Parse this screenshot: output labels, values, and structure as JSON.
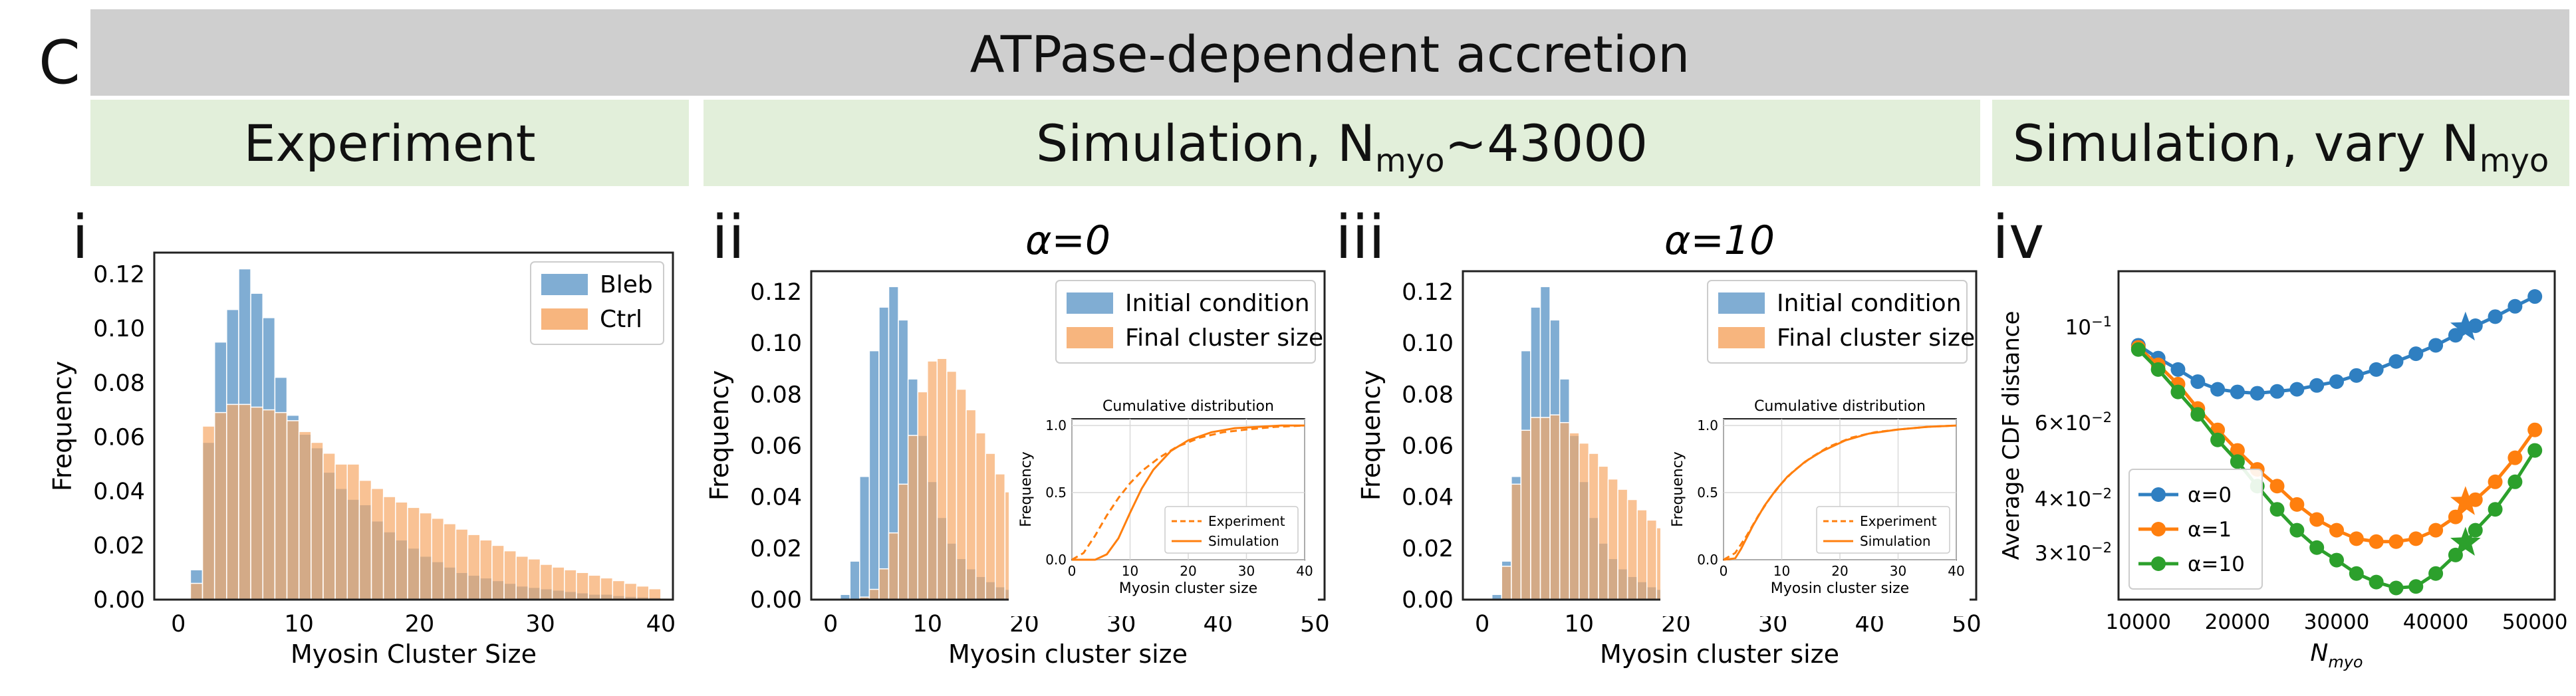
{
  "figure": {
    "panel_letter": "C",
    "banner_title": "ATPase-dependent accretion",
    "header_experiment": "Experiment",
    "header_sim_base": "Simulation, N",
    "header_sim_sub": "myo",
    "header_sim_tail": "~43000",
    "header_vary_base": "Simulation, vary N",
    "header_vary_sub": "myo"
  },
  "colors": {
    "blue": "#6a9fcb",
    "orange": "#f6a867",
    "overlap": "#b48a68",
    "line_blue": "#2f7fc1",
    "line_orange": "#ff7f0e",
    "line_green": "#2ca02c"
  },
  "chart_data": [
    {
      "id": "i",
      "panel_label": "i",
      "type": "bar",
      "title": "",
      "xlabel": "Myosin Cluster Size",
      "ylabel": "Frequency",
      "xlim": [
        -2,
        41
      ],
      "ylim": [
        0,
        0.128
      ],
      "xticks": [
        0,
        10,
        20,
        30,
        40
      ],
      "yticks": [
        0.0,
        0.02,
        0.04,
        0.06,
        0.08,
        0.1,
        0.12
      ],
      "ytick_labels": [
        "0.00",
        "0.02",
        "0.04",
        "0.06",
        "0.08",
        "0.10",
        "0.12"
      ],
      "legend_position": "upper right",
      "series": [
        {
          "name": "Bleb",
          "color": "blue",
          "bin_start": 1,
          "values": [
            0.011,
            0.058,
            0.095,
            0.107,
            0.122,
            0.113,
            0.104,
            0.082,
            0.068,
            0.061,
            0.056,
            0.047,
            0.041,
            0.037,
            0.035,
            0.029,
            0.025,
            0.022,
            0.019,
            0.016,
            0.014,
            0.012,
            0.01,
            0.009,
            0.008,
            0.007,
            0.006,
            0.005,
            0.0045,
            0.004,
            0.0035,
            0.003,
            0.0025,
            0.002,
            0.002,
            0.0015,
            0.0012,
            0.001,
            0.0008
          ]
        },
        {
          "name": "Ctrl",
          "color": "orange",
          "bin_start": 1,
          "values": [
            0.006,
            0.064,
            0.069,
            0.072,
            0.072,
            0.071,
            0.07,
            0.069,
            0.066,
            0.062,
            0.058,
            0.054,
            0.05,
            0.05,
            0.044,
            0.041,
            0.038,
            0.036,
            0.034,
            0.032,
            0.03,
            0.028,
            0.026,
            0.024,
            0.022,
            0.02,
            0.018,
            0.016,
            0.015,
            0.013,
            0.012,
            0.011,
            0.01,
            0.009,
            0.008,
            0.007,
            0.006,
            0.005,
            0.004
          ]
        }
      ]
    },
    {
      "id": "ii",
      "panel_label": "ii",
      "type": "bar",
      "title": "α=0",
      "xlabel": "Myosin cluster size",
      "ylabel": "Frequency",
      "xlim": [
        -2,
        51
      ],
      "ylim": [
        0,
        0.128
      ],
      "xticks": [
        0,
        10,
        20,
        30,
        40,
        50
      ],
      "yticks": [
        0.0,
        0.02,
        0.04,
        0.06,
        0.08,
        0.1,
        0.12
      ],
      "ytick_labels": [
        "0.00",
        "0.02",
        "0.04",
        "0.06",
        "0.08",
        "0.10",
        "0.12"
      ],
      "legend_position": "upper right",
      "series": [
        {
          "name": "Initial condition",
          "color": "blue",
          "bin_start": 1,
          "values": [
            0.002,
            0.015,
            0.048,
            0.097,
            0.114,
            0.122,
            0.109,
            0.086,
            0.064,
            0.046,
            0.032,
            0.022,
            0.016,
            0.012,
            0.009,
            0.007,
            0.005,
            0.004,
            0.003,
            0.0025,
            0.002,
            0.0015,
            0.001,
            0.0008,
            0.0006,
            0.0005,
            0.0004
          ]
        },
        {
          "name": "Final cluster size",
          "color": "orange",
          "bin_start": 1,
          "values": [
            0.0,
            0.0,
            0.001,
            0.004,
            0.012,
            0.026,
            0.045,
            0.064,
            0.081,
            0.093,
            0.094,
            0.089,
            0.082,
            0.074,
            0.065,
            0.057,
            0.049,
            0.042,
            0.035,
            0.029,
            0.024,
            0.019,
            0.016,
            0.013,
            0.01,
            0.008,
            0.006,
            0.005,
            0.004,
            0.003,
            0.0025,
            0.002,
            0.0015,
            0.001,
            0.0008
          ]
        }
      ],
      "inset": {
        "title": "Cumulative distribution",
        "xlabel": "Myosin cluster size",
        "ylabel": "Frequency",
        "xlim": [
          0,
          40
        ],
        "ylim": [
          0,
          1.05
        ],
        "xticks": [
          0,
          10,
          20,
          30,
          40
        ],
        "yticks": [
          0.0,
          0.5,
          1.0
        ],
        "ytick_labels": [
          "0.0",
          "0.5",
          "1.0"
        ],
        "legend": [
          "Experiment",
          "Simulation"
        ],
        "series": [
          {
            "name": "Experiment",
            "style": "dashed",
            "x": [
              0,
              2,
              4,
              6,
              8,
              10,
              12,
              15,
              18,
              22,
              26,
              30,
              35,
              40
            ],
            "y": [
              0.0,
              0.05,
              0.18,
              0.33,
              0.46,
              0.57,
              0.66,
              0.76,
              0.84,
              0.91,
              0.95,
              0.97,
              0.99,
              1.0
            ]
          },
          {
            "name": "Simulation",
            "style": "solid",
            "x": [
              0,
              4,
              6,
              8,
              10,
              12,
              14,
              17,
              20,
              24,
              28,
              32,
              36,
              40
            ],
            "y": [
              0.0,
              0.0,
              0.04,
              0.16,
              0.35,
              0.53,
              0.67,
              0.81,
              0.89,
              0.95,
              0.98,
              0.99,
              1.0,
              1.0
            ]
          }
        ]
      }
    },
    {
      "id": "iii",
      "panel_label": "iii",
      "type": "bar",
      "title": "α=10",
      "xlabel": "Myosin cluster size",
      "ylabel": "Frequency",
      "xlim": [
        -2,
        51
      ],
      "ylim": [
        0,
        0.128
      ],
      "xticks": [
        0,
        10,
        20,
        30,
        40,
        50
      ],
      "yticks": [
        0.0,
        0.02,
        0.04,
        0.06,
        0.08,
        0.1,
        0.12
      ],
      "ytick_labels": [
        "0.00",
        "0.02",
        "0.04",
        "0.06",
        "0.08",
        "0.10",
        "0.12"
      ],
      "legend_position": "upper right",
      "series": [
        {
          "name": "Initial condition",
          "color": "blue",
          "bin_start": 1,
          "values": [
            0.002,
            0.015,
            0.048,
            0.097,
            0.114,
            0.122,
            0.109,
            0.086,
            0.064,
            0.046,
            0.032,
            0.022,
            0.016,
            0.012,
            0.009,
            0.007,
            0.005,
            0.004,
            0.003,
            0.0025,
            0.002,
            0.0015,
            0.001,
            0.0008,
            0.0006,
            0.0005,
            0.0004
          ]
        },
        {
          "name": "Final cluster size",
          "color": "orange",
          "bin_start": 1,
          "values": [
            0.0,
            0.013,
            0.045,
            0.066,
            0.071,
            0.071,
            0.072,
            0.069,
            0.065,
            0.061,
            0.057,
            0.052,
            0.047,
            0.043,
            0.039,
            0.035,
            0.031,
            0.028,
            0.025,
            0.022,
            0.019,
            0.017,
            0.015,
            0.013,
            0.011,
            0.01,
            0.009,
            0.008,
            0.007,
            0.006,
            0.005,
            0.0045,
            0.004,
            0.0035,
            0.003,
            0.0025,
            0.002,
            0.0018,
            0.0015,
            0.0012,
            0.001
          ]
        }
      ],
      "inset": {
        "title": "Cumulative distribution",
        "xlabel": "Myosin cluster size",
        "ylabel": "Frequency",
        "xlim": [
          0,
          40
        ],
        "ylim": [
          0,
          1.05
        ],
        "xticks": [
          0,
          10,
          20,
          30,
          40
        ],
        "yticks": [
          0.0,
          0.5,
          1.0
        ],
        "ytick_labels": [
          "0.0",
          "0.5",
          "1.0"
        ],
        "legend": [
          "Experiment",
          "Simulation"
        ],
        "series": [
          {
            "name": "Experiment",
            "style": "dashed",
            "x": [
              0,
              2,
              4,
              6,
              8,
              10,
              12,
              15,
              18,
              22,
              26,
              30,
              35,
              40
            ],
            "y": [
              0.0,
              0.05,
              0.18,
              0.33,
              0.46,
              0.57,
              0.66,
              0.76,
              0.84,
              0.91,
              0.95,
              0.97,
              0.99,
              1.0
            ]
          },
          {
            "name": "Simulation",
            "style": "solid",
            "x": [
              0,
              2,
              3,
              5,
              7,
              9,
              11,
              14,
              17,
              21,
              25,
              30,
              35,
              40
            ],
            "y": [
              0.0,
              0.01,
              0.08,
              0.25,
              0.4,
              0.52,
              0.62,
              0.73,
              0.81,
              0.89,
              0.94,
              0.97,
              0.99,
              1.0
            ]
          }
        ]
      }
    },
    {
      "id": "iv",
      "panel_label": "iv",
      "type": "line",
      "title": "",
      "xlabel": "N",
      "xlabel_sub": "myo",
      "ylabel": "Average CDF distance",
      "yscale": "log",
      "xlim": [
        8000,
        52000
      ],
      "ylim": [
        0.0235,
        0.135
      ],
      "xticks": [
        10000,
        20000,
        30000,
        40000,
        50000
      ],
      "xtick_labels": [
        "10000",
        "20000",
        "30000",
        "40000",
        "50000"
      ],
      "ytick_labels": [
        {
          "value": 0.1,
          "base": "10",
          "exp": "−1"
        },
        {
          "value": 0.06,
          "base": "6×10",
          "exp": "−2"
        },
        {
          "value": 0.04,
          "base": "4×10",
          "exp": "−2"
        },
        {
          "value": 0.03,
          "base": "3×10",
          "exp": "−2"
        }
      ],
      "legend_position": "lower left",
      "x": [
        10000,
        12000,
        14000,
        16000,
        18000,
        20000,
        22000,
        24000,
        26000,
        28000,
        30000,
        32000,
        34000,
        36000,
        38000,
        40000,
        42000,
        44000,
        46000,
        48000,
        50000
      ],
      "series": [
        {
          "name": "α=0",
          "color": "line_blue",
          "values": [
            0.091,
            0.085,
            0.08,
            0.075,
            0.072,
            0.071,
            0.0705,
            0.0712,
            0.072,
            0.0735,
            0.075,
            0.0775,
            0.08,
            0.0835,
            0.087,
            0.091,
            0.096,
            0.101,
            0.106,
            0.112,
            0.118
          ],
          "star_at": 43000,
          "star_value": 0.1
        },
        {
          "name": "α=1",
          "color": "line_orange",
          "values": [
            0.09,
            0.082,
            0.074,
            0.065,
            0.058,
            0.052,
            0.047,
            0.043,
            0.039,
            0.036,
            0.034,
            0.0325,
            0.032,
            0.032,
            0.0325,
            0.034,
            0.0365,
            0.04,
            0.044,
            0.05,
            0.058
          ],
          "star_at": 43000,
          "star_value": 0.0395
        },
        {
          "name": "α=10",
          "color": "line_green",
          "values": [
            0.089,
            0.08,
            0.071,
            0.063,
            0.055,
            0.049,
            0.043,
            0.038,
            0.034,
            0.031,
            0.029,
            0.027,
            0.0258,
            0.025,
            0.0252,
            0.027,
            0.0298,
            0.034,
            0.038,
            0.044,
            0.052
          ],
          "star_at": 43000,
          "star_value": 0.0318
        }
      ]
    }
  ]
}
